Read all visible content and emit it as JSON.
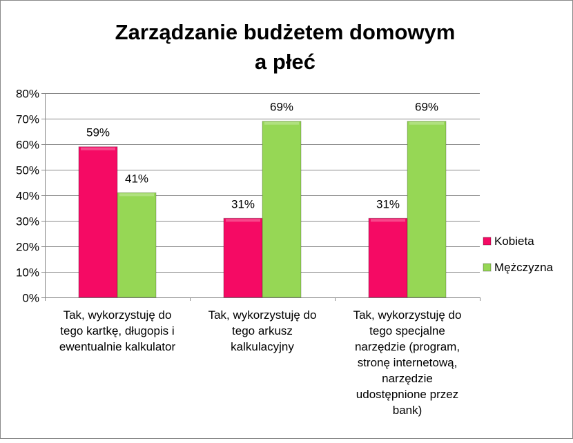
{
  "chart_data": {
    "type": "bar",
    "title_lines": [
      "Zarządzanie budżetem domowym",
      "a płeć"
    ],
    "categories": [
      [
        "Tak, wykorzystuję do",
        "tego kartkę, długopis i",
        "ewentualnie kalkulator"
      ],
      [
        "Tak, wykorzystuję do",
        "tego arkusz",
        "kalkulacyjny"
      ],
      [
        "Tak, wykorzystuję do",
        "tego specjalne",
        "narzędzie (program,",
        "stronę internetową,",
        "narzędzie",
        "udostępnione przez",
        "bank)"
      ]
    ],
    "series": [
      {
        "name": "Kobieta",
        "color": "#f50a64",
        "values": [
          59,
          31,
          31
        ],
        "labels": [
          "59%",
          "31%",
          "31%"
        ]
      },
      {
        "name": "Mężczyzna",
        "color": "#96d755",
        "values": [
          41,
          69,
          69
        ],
        "labels": [
          "41%",
          "69%",
          "69%"
        ]
      }
    ],
    "ylim": [
      0,
      80
    ],
    "yticks": [
      "0%",
      "10%",
      "20%",
      "30%",
      "40%",
      "50%",
      "60%",
      "70%",
      "80%"
    ],
    "xlabel": "",
    "ylabel": "",
    "grid": true,
    "legend": "right"
  }
}
